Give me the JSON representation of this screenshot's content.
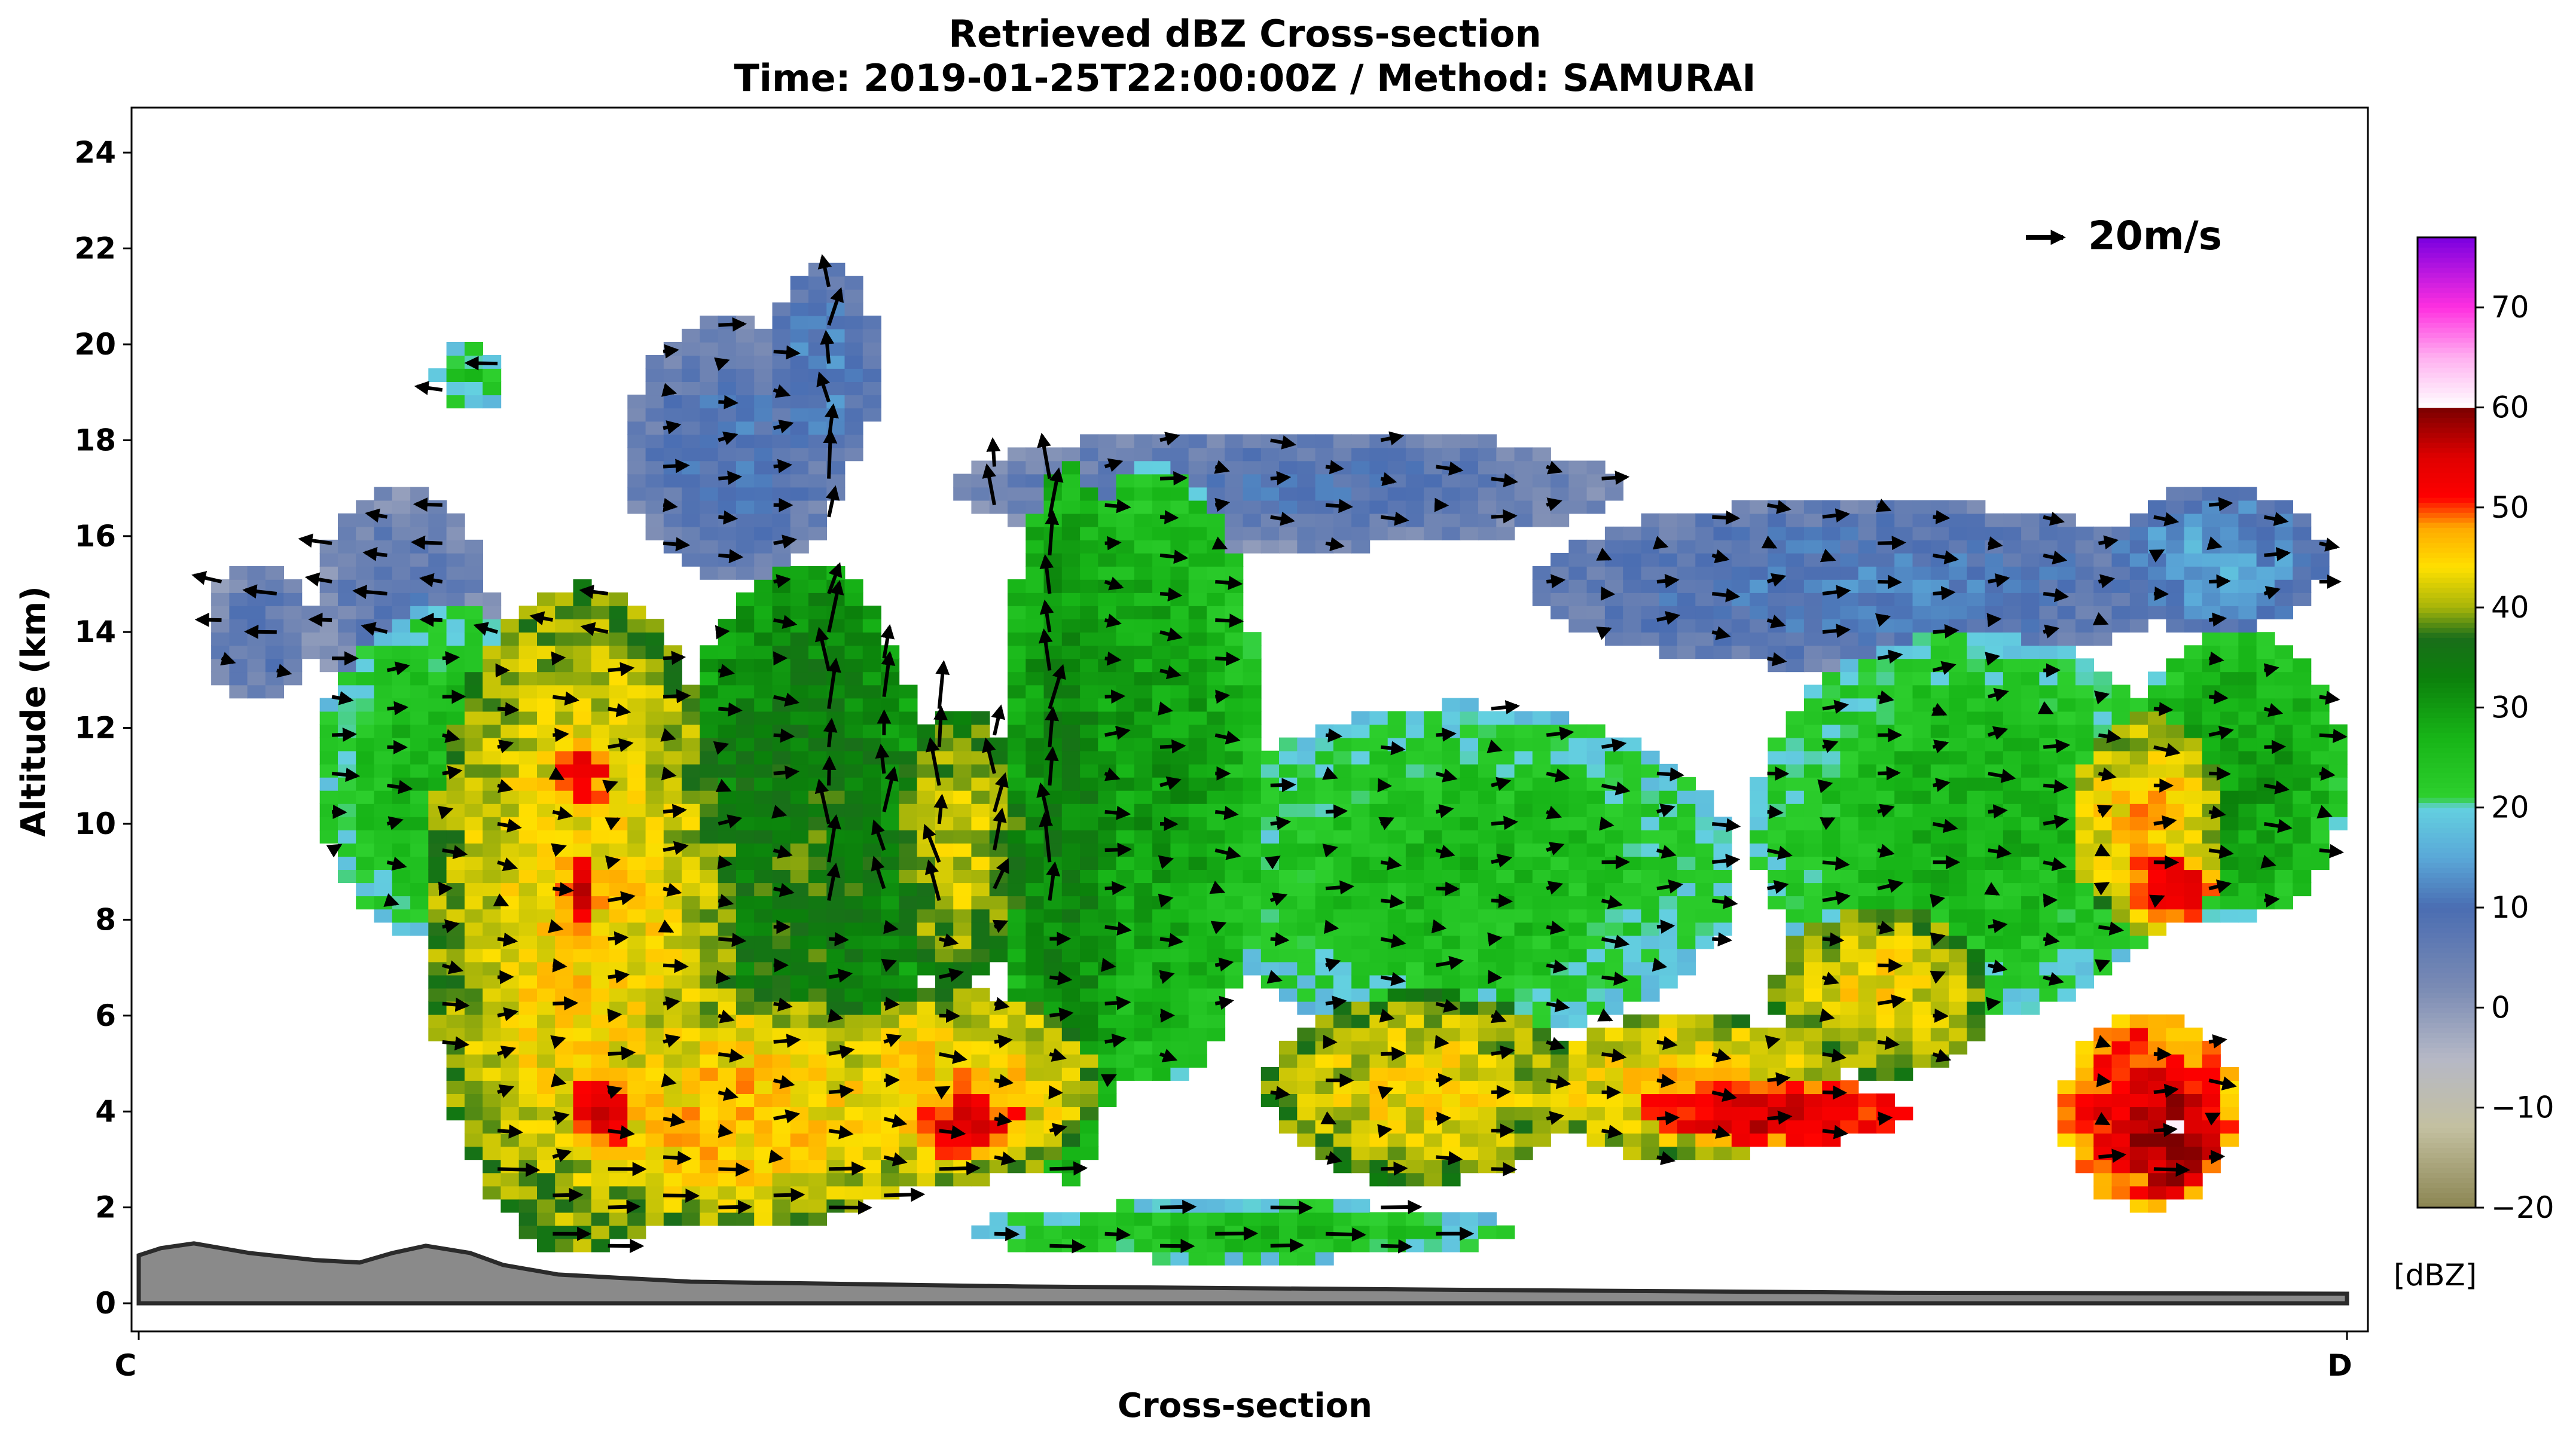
{
  "chart_data": {
    "type": "heatmap",
    "title": "Retrieved dBZ Cross-section",
    "subtitle": "Time: 2019-01-25T22:00:00Z / Method: SAMURAI",
    "xlabel": "Cross-section",
    "ylabel": "Altitude (km)",
    "x_ticks": [
      "C",
      "D"
    ],
    "y_ticks": [
      "0",
      "2",
      "4",
      "6",
      "8",
      "10",
      "12",
      "14",
      "16",
      "18",
      "20",
      "22",
      "24"
    ],
    "ylim": [
      -0.5,
      25
    ],
    "x_range": [
      0,
      1
    ],
    "colorbar": {
      "label": "[dBZ]",
      "range": [
        -20,
        77
      ],
      "ticks": [
        "−20",
        "−10",
        "0",
        "10",
        "20",
        "30",
        "40",
        "50",
        "60",
        "70"
      ],
      "stops": [
        {
          "v": -20,
          "c": "#8b8552"
        },
        {
          "v": -12,
          "c": "#c3c0a0"
        },
        {
          "v": -5,
          "c": "#b5b8c6"
        },
        {
          "v": 2,
          "c": "#7a8bb4"
        },
        {
          "v": 10,
          "c": "#4a6db2"
        },
        {
          "v": 15,
          "c": "#5aa8d8"
        },
        {
          "v": 20,
          "c": "#63d0e0"
        },
        {
          "v": 21,
          "c": "#2ed02e"
        },
        {
          "v": 27,
          "c": "#17b517"
        },
        {
          "v": 33,
          "c": "#0b800b"
        },
        {
          "v": 37,
          "c": "#1a6e1a"
        },
        {
          "v": 40,
          "c": "#a6b40a"
        },
        {
          "v": 44,
          "c": "#ffe000"
        },
        {
          "v": 48,
          "c": "#ffaa00"
        },
        {
          "v": 51,
          "c": "#ff0000"
        },
        {
          "v": 55,
          "c": "#e00000"
        },
        {
          "v": 60,
          "c": "#7a0000"
        },
        {
          "v": 60.01,
          "c": "#ffffff"
        },
        {
          "v": 65,
          "c": "#ffb0f0"
        },
        {
          "v": 70,
          "c": "#ff30e0"
        },
        {
          "v": 77,
          "c": "#7a00e0"
        }
      ]
    },
    "reference_vector": {
      "label": "20m/s",
      "speed": 20
    },
    "terrain_profile": {
      "x": [
        0,
        0.01,
        0.025,
        0.05,
        0.08,
        0.1,
        0.115,
        0.13,
        0.15,
        0.165,
        0.19,
        0.25,
        0.4,
        0.6,
        0.8,
        1.0
      ],
      "y": [
        1.0,
        1.15,
        1.25,
        1.05,
        0.9,
        0.85,
        1.05,
        1.2,
        1.05,
        0.8,
        0.6,
        0.45,
        0.35,
        0.28,
        0.22,
        0.2
      ]
    },
    "reflectivity_features": [
      {
        "x": 0.055,
        "z": 14.0,
        "w": 0.05,
        "h": 3.0,
        "dbz": 8
      },
      {
        "x": 0.12,
        "z": 14.5,
        "w": 0.08,
        "h": 5.0,
        "dbz": 8
      },
      {
        "x": 0.27,
        "z": 17.8,
        "w": 0.1,
        "h": 5.5,
        "dbz": 10
      },
      {
        "x": 0.31,
        "z": 19.5,
        "w": 0.05,
        "h": 4.5,
        "dbz": 12
      },
      {
        "x": 0.52,
        "z": 17.0,
        "w": 0.3,
        "h": 2.5,
        "dbz": 9
      },
      {
        "x": 0.78,
        "z": 15.0,
        "w": 0.3,
        "h": 3.5,
        "dbz": 11
      },
      {
        "x": 0.94,
        "z": 15.5,
        "w": 0.1,
        "h": 3.0,
        "dbz": 15
      },
      {
        "x": 0.14,
        "z": 11.0,
        "w": 0.12,
        "h": 7.0,
        "dbz": 27
      },
      {
        "x": 0.3,
        "z": 9.0,
        "w": 0.12,
        "h": 13.0,
        "dbz": 36
      },
      {
        "x": 0.42,
        "z": 10.0,
        "w": 0.06,
        "h": 15.0,
        "dbz": 33
      },
      {
        "x": 0.46,
        "z": 11.0,
        "w": 0.1,
        "h": 13.0,
        "dbz": 30
      },
      {
        "x": 0.6,
        "z": 9.0,
        "w": 0.25,
        "h": 7.0,
        "dbz": 26
      },
      {
        "x": 0.83,
        "z": 10.0,
        "w": 0.2,
        "h": 8.0,
        "dbz": 27
      },
      {
        "x": 0.95,
        "z": 11.0,
        "w": 0.1,
        "h": 6.0,
        "dbz": 30
      },
      {
        "x": 0.2,
        "z": 8.0,
        "w": 0.14,
        "h": 14.0,
        "dbz": 45
      },
      {
        "x": 0.27,
        "z": 4.0,
        "w": 0.2,
        "h": 5.0,
        "dbz": 46
      },
      {
        "x": 0.37,
        "z": 4.5,
        "w": 0.13,
        "h": 4.0,
        "dbz": 46
      },
      {
        "x": 0.37,
        "z": 9.5,
        "w": 0.06,
        "h": 6.0,
        "dbz": 42
      },
      {
        "x": 0.58,
        "z": 4.5,
        "w": 0.14,
        "h": 4.0,
        "dbz": 44
      },
      {
        "x": 0.7,
        "z": 4.5,
        "w": 0.14,
        "h": 3.0,
        "dbz": 46
      },
      {
        "x": 0.79,
        "z": 6.5,
        "w": 0.1,
        "h": 3.5,
        "dbz": 44
      },
      {
        "x": 0.91,
        "z": 10.0,
        "w": 0.07,
        "h": 4.5,
        "dbz": 46
      },
      {
        "x": 0.91,
        "z": 4.0,
        "w": 0.08,
        "h": 4.0,
        "dbz": 54
      },
      {
        "x": 0.92,
        "z": 8.7,
        "w": 0.04,
        "h": 1.5,
        "dbz": 54
      },
      {
        "x": 0.2,
        "z": 11.0,
        "w": 0.025,
        "h": 1.5,
        "dbz": 54
      },
      {
        "x": 0.2,
        "z": 8.5,
        "w": 0.02,
        "h": 1.8,
        "dbz": 54
      },
      {
        "x": 0.21,
        "z": 4.0,
        "w": 0.03,
        "h": 2.0,
        "dbz": 54
      },
      {
        "x": 0.375,
        "z": 3.8,
        "w": 0.05,
        "h": 1.5,
        "dbz": 54
      },
      {
        "x": 0.74,
        "z": 4.0,
        "w": 0.12,
        "h": 1.4,
        "dbz": 56
      },
      {
        "x": 0.92,
        "z": 3.5,
        "w": 0.04,
        "h": 2.5,
        "dbz": 60
      },
      {
        "x": 0.15,
        "z": 19.3,
        "w": 0.03,
        "h": 1.5,
        "dbz": 24
      },
      {
        "x": 0.5,
        "z": 1.5,
        "w": 0.25,
        "h": 1.2,
        "dbz": 26
      }
    ],
    "wind_vectors": "quiver field of dual-Doppler retrieved winds (u, w) in m/s, plotted on the cross-section; reference arrow = 20 m/s"
  }
}
